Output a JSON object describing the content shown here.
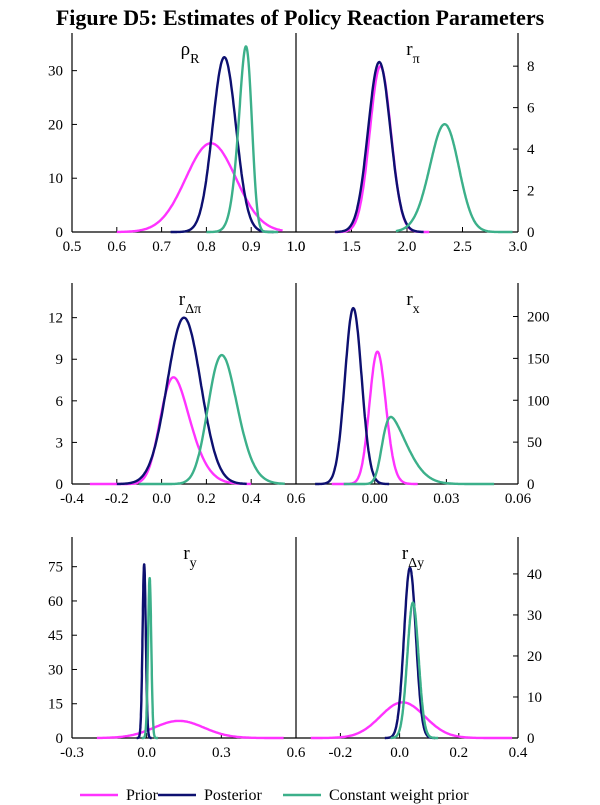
{
  "title": "Figure D5: Estimates of Policy Reaction Parameters",
  "colors": {
    "prior": "#ff33ff",
    "posterior": "#0d1070",
    "constant": "#3cb08a"
  },
  "legend": [
    {
      "key": "prior",
      "label": "Prior"
    },
    {
      "key": "posterior",
      "label": "Posterior"
    },
    {
      "key": "constant",
      "label": "Constant weight prior"
    }
  ],
  "chart_data": [
    {
      "type": "line",
      "id": "rho_R",
      "label_main": "ρ",
      "label_sub": "R",
      "x_ticks": [
        0.5,
        0.6,
        0.7,
        0.8,
        0.9,
        1.0
      ],
      "x_tick_labels": [
        "0.5",
        "0.6",
        "0.7",
        "0.8",
        "0.9",
        "1.0"
      ],
      "xlim": [
        0.5,
        1.0
      ],
      "y_axis": "left",
      "ylim": [
        0,
        37
      ],
      "y_ticks": [
        0,
        10,
        20,
        30
      ],
      "y_tick_labels": [
        "0",
        "10",
        "20",
        "30"
      ],
      "series": [
        {
          "name": "Prior",
          "key": "prior",
          "mean": 0.81,
          "sd": 0.056,
          "peak": 16.5,
          "range": [
            0.6,
            0.97
          ]
        },
        {
          "name": "Posterior",
          "key": "posterior",
          "mean": 0.84,
          "sd": 0.026,
          "peak": 32.5,
          "range": [
            0.72,
            0.95
          ]
        },
        {
          "name": "Constant weight prior",
          "key": "constant",
          "mean": 0.9,
          "sd": 0.022,
          "skew": -2,
          "peak": 34.5,
          "range": [
            0.8,
            0.96
          ]
        }
      ]
    },
    {
      "type": "line",
      "id": "r_pi",
      "label_main": "r",
      "label_sub": "π",
      "x_ticks": [
        1.0,
        1.5,
        2.0,
        2.5,
        3.0
      ],
      "x_tick_labels": [
        "1.0",
        "1.5",
        "2.0",
        "2.5",
        "3.0"
      ],
      "xlim": [
        1.0,
        3.0
      ],
      "y_axis": "right",
      "ylim": [
        0,
        9.6
      ],
      "y_ticks": [
        0,
        2,
        4,
        6,
        8
      ],
      "y_tick_labels": [
        "0",
        "2",
        "4",
        "6",
        "8"
      ],
      "series": [
        {
          "name": "Prior",
          "key": "prior",
          "mean": 1.76,
          "sd": 0.095,
          "peak": 8.0,
          "range": [
            1.35,
            2.2
          ]
        },
        {
          "name": "Posterior",
          "key": "posterior",
          "mean": 1.75,
          "sd": 0.1,
          "peak": 8.2,
          "range": [
            1.35,
            2.15
          ]
        },
        {
          "name": "Constant weight prior",
          "key": "constant",
          "mean": 2.42,
          "sd": 0.16,
          "skew": -1,
          "peak": 5.2,
          "range": [
            1.9,
            2.95
          ]
        }
      ]
    },
    {
      "type": "line",
      "id": "r_dpi",
      "label_main": "r",
      "label_sub": "Δπ",
      "x_ticks": [
        -0.4,
        -0.2,
        0.0,
        0.2,
        0.4,
        0.6
      ],
      "x_tick_labels": [
        "-0.4",
        "-0.2",
        "0.0",
        "0.2",
        "0.4",
        "0.6"
      ],
      "xlim": [
        -0.4,
        0.6
      ],
      "y_axis": "left",
      "ylim": [
        0,
        14.5
      ],
      "y_ticks": [
        0,
        3,
        6,
        9,
        12
      ],
      "y_tick_labels": [
        "0",
        "3",
        "6",
        "9",
        "12"
      ],
      "series": [
        {
          "name": "Prior",
          "key": "prior",
          "mean": 0.0,
          "sd": 0.1,
          "skew": 2,
          "peak": 7.7,
          "range": [
            -0.32,
            0.4
          ]
        },
        {
          "name": "Posterior",
          "key": "posterior",
          "mean": 0.1,
          "sd": 0.075,
          "peak": 12.0,
          "range": [
            -0.2,
            0.38
          ]
        },
        {
          "name": "Constant weight prior",
          "key": "constant",
          "mean": 0.22,
          "sd": 0.09,
          "skew": 1.5,
          "peak": 9.3,
          "range": [
            -0.1,
            0.55
          ]
        }
      ]
    },
    {
      "type": "line",
      "id": "r_x",
      "label_main": "r",
      "label_sub": "x",
      "x_ticks": [
        0.0,
        0.03,
        0.06
      ],
      "x_tick_labels": [
        "0.00",
        "0.03",
        "0.06"
      ],
      "xlim": [
        -0.033,
        0.06
      ],
      "y_axis": "right",
      "ylim": [
        0,
        240
      ],
      "y_ticks": [
        0,
        50,
        100,
        150,
        200
      ],
      "y_tick_labels": [
        "0",
        "50",
        "100",
        "150",
        "200"
      ],
      "series": [
        {
          "name": "Prior",
          "key": "prior",
          "mean": -0.001,
          "sd": 0.0042,
          "skew": 1,
          "peak": 158,
          "range": [
            -0.018,
            0.018
          ]
        },
        {
          "name": "Posterior",
          "key": "posterior",
          "mean": -0.009,
          "sd": 0.0035,
          "peak": 210,
          "range": [
            -0.025,
            0.006
          ]
        },
        {
          "name": "Constant weight prior",
          "key": "constant",
          "mean": 0.003,
          "sd": 0.009,
          "skew": 4,
          "peak": 80,
          "range": [
            -0.013,
            0.05
          ]
        }
      ]
    },
    {
      "type": "line",
      "id": "r_y",
      "label_main": "r",
      "label_sub": "y",
      "x_ticks": [
        -0.3,
        0.0,
        0.3,
        0.6
      ],
      "x_tick_labels": [
        "-0.3",
        "0.0",
        "0.3",
        "0.6"
      ],
      "xlim": [
        -0.3,
        0.6
      ],
      "y_axis": "left",
      "ylim": [
        0,
        88
      ],
      "y_ticks": [
        0,
        15,
        30,
        45,
        60,
        75
      ],
      "y_tick_labels": [
        "0",
        "15",
        "30",
        "45",
        "60",
        "75"
      ],
      "series": [
        {
          "name": "Prior",
          "key": "prior",
          "mean": 0.13,
          "sd": 0.1,
          "peak": 7.5,
          "range": [
            -0.2,
            0.55
          ]
        },
        {
          "name": "Posterior",
          "key": "posterior",
          "mean": -0.01,
          "sd": 0.0065,
          "peak": 76,
          "range": [
            -0.04,
            0.02
          ]
        },
        {
          "name": "Constant weight prior",
          "key": "constant",
          "mean": 0.012,
          "sd": 0.0065,
          "peak": 70,
          "range": [
            -0.02,
            0.045
          ]
        }
      ]
    },
    {
      "type": "line",
      "id": "r_dy",
      "label_main": "r",
      "label_sub": "Δy",
      "x_ticks": [
        -0.2,
        0.0,
        0.2,
        0.4
      ],
      "x_tick_labels": [
        "-0.2",
        "0.0",
        "0.2",
        "0.4"
      ],
      "xlim": [
        -0.35,
        0.4
      ],
      "y_axis": "right",
      "ylim": [
        0,
        49
      ],
      "y_ticks": [
        0,
        10,
        20,
        30,
        40
      ],
      "y_tick_labels": [
        "0",
        "10",
        "20",
        "30",
        "40"
      ],
      "series": [
        {
          "name": "Prior",
          "key": "prior",
          "mean": 0.01,
          "sd": 0.075,
          "peak": 8.7,
          "range": [
            -0.3,
            0.38
          ]
        },
        {
          "name": "Posterior",
          "key": "posterior",
          "mean": 0.035,
          "sd": 0.02,
          "peak": 41.5,
          "range": [
            -0.05,
            0.12
          ]
        },
        {
          "name": "Constant weight prior",
          "key": "constant",
          "mean": 0.045,
          "sd": 0.019,
          "peak": 33,
          "range": [
            -0.03,
            0.13
          ]
        }
      ]
    }
  ]
}
